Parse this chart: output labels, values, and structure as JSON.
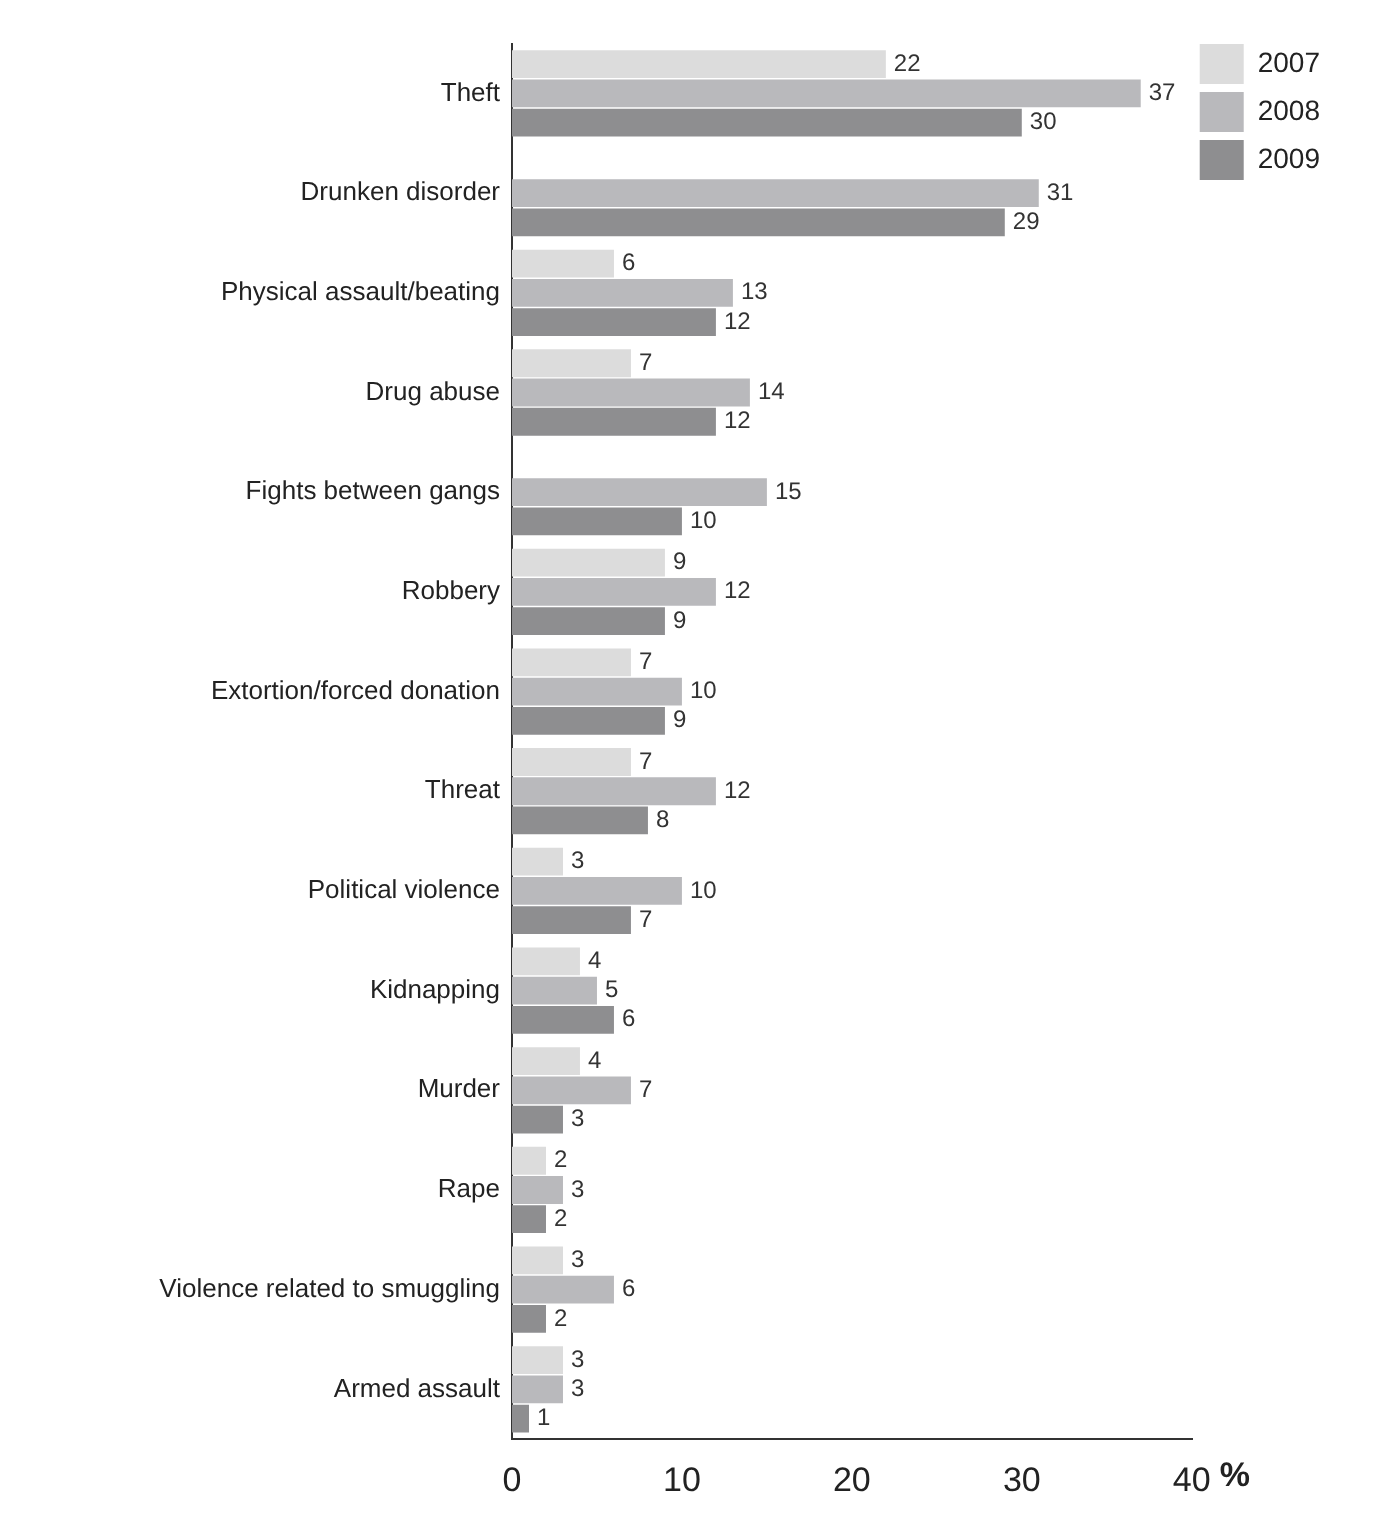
{
  "chart_data": {
    "type": "bar",
    "orientation": "horizontal",
    "xlabel": "%",
    "categories": [
      "Theft",
      "Drunken disorder",
      "Physical assault/beating",
      "Drug abuse",
      "Fights between gangs",
      "Robbery",
      "Extortion/forced donation",
      "Threat",
      "Political violence",
      "Kidnapping",
      "Murder",
      "Rape",
      "Violence related to smuggling",
      "Armed assault"
    ],
    "series": [
      {
        "name": "2007",
        "color": "#dcdcdc",
        "values": [
          22,
          null,
          6,
          7,
          null,
          9,
          7,
          7,
          3,
          4,
          4,
          2,
          3,
          3
        ]
      },
      {
        "name": "2008",
        "color": "#b9b9bc",
        "values": [
          37,
          31,
          13,
          14,
          15,
          12,
          10,
          12,
          10,
          5,
          7,
          3,
          6,
          3
        ]
      },
      {
        "name": "2009",
        "color": "#8e8e90",
        "values": [
          30,
          29,
          12,
          12,
          10,
          9,
          9,
          8,
          7,
          6,
          3,
          2,
          2,
          1
        ]
      }
    ],
    "xlim": [
      0,
      40
    ],
    "xticks": [
      0,
      10,
      20,
      30,
      40
    ],
    "grid": false,
    "legend": "top right",
    "data_labels": true
  }
}
